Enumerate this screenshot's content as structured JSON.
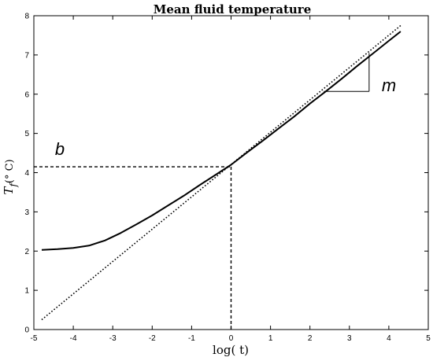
{
  "chart_data": {
    "type": "line",
    "title": "Mean fluid  temperature",
    "xlabel": "log( t)",
    "ylabel_main": "T",
    "ylabel_sub": "f",
    "ylabel_unit": "(° C)",
    "xlim": [
      -5,
      5
    ],
    "ylim": [
      0,
      8
    ],
    "xticks": [
      -5,
      -4,
      -3,
      -2,
      -1,
      0,
      1,
      2,
      3,
      4,
      5
    ],
    "yticks": [
      0,
      1,
      2,
      3,
      4,
      5,
      6,
      7,
      8
    ],
    "grid": false,
    "series": [
      {
        "style": "solid",
        "x": [
          -4.8,
          -4.4,
          -4.0,
          -3.6,
          -3.2,
          -2.8,
          -2.4,
          -2.0,
          -1.6,
          -1.2,
          -0.8,
          -0.4,
          0.0,
          0.4,
          0.8,
          1.2,
          1.6,
          2.0,
          2.4,
          2.8,
          3.2,
          3.6,
          4.0,
          4.3
        ],
        "y": [
          2.03,
          2.05,
          2.08,
          2.14,
          2.27,
          2.46,
          2.68,
          2.91,
          3.16,
          3.41,
          3.68,
          3.94,
          4.2,
          4.51,
          4.81,
          5.12,
          5.43,
          5.76,
          6.07,
          6.39,
          6.72,
          7.04,
          7.36,
          7.6
        ]
      },
      {
        "style": "dotted",
        "x": [
          -4.8,
          4.3
        ],
        "y": [
          0.25,
          7.75
        ]
      }
    ],
    "annotations": {
      "intercept_label": "b",
      "intercept_value": 4.15,
      "intercept_x": 0,
      "slope_label": "m",
      "slope_triangle": {
        "x1": 2.35,
        "x2": 3.5,
        "y_low": 6.07,
        "y_high": 7.05
      }
    }
  }
}
